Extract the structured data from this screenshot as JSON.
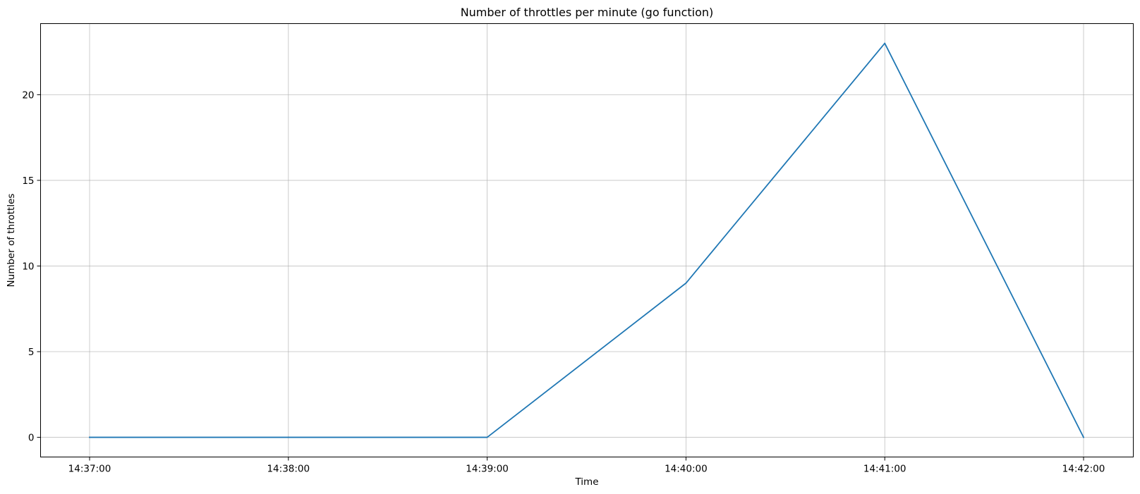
{
  "chart_data": {
    "type": "line",
    "title": "Number of throttles per minute (go function)",
    "xlabel": "Time",
    "ylabel": "Number of throttles",
    "x": [
      "14:37:00",
      "14:38:00",
      "14:39:00",
      "14:40:00",
      "14:41:00",
      "14:42:00"
    ],
    "series": [
      {
        "values": [
          0,
          0,
          0,
          9,
          23,
          0
        ],
        "color": "#1f77b4"
      }
    ],
    "yticks": [
      0,
      5,
      10,
      15,
      20
    ],
    "ylim": [
      -1.15,
      24.15
    ],
    "grid": true,
    "legend": "none"
  }
}
